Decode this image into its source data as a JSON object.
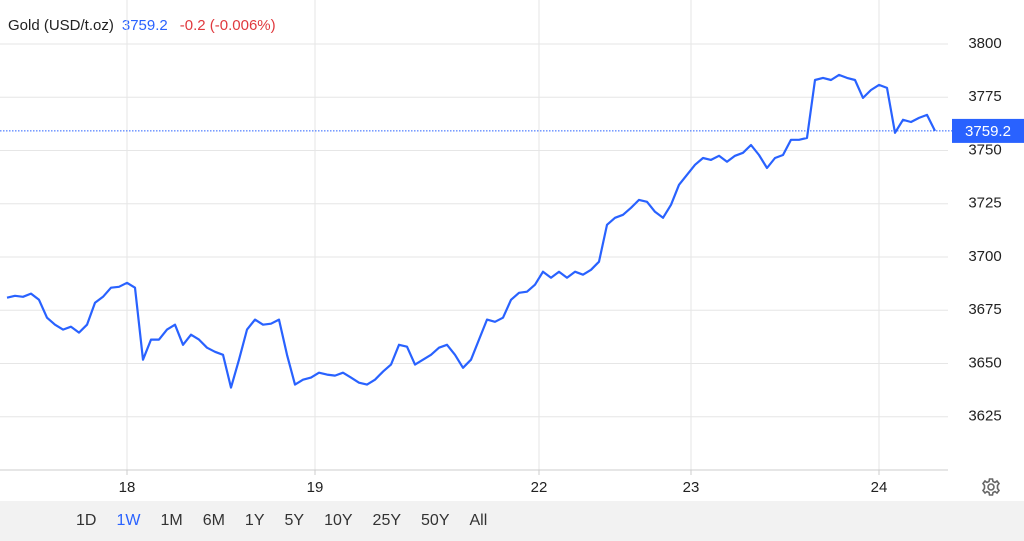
{
  "chart_data": {
    "type": "line",
    "title": "Gold (USD/t.oz)",
    "last_price": 3759.2,
    "change": "-0.2 (-0.006%)",
    "x": [
      0,
      1,
      2,
      3,
      4,
      5,
      6,
      7,
      8,
      9,
      10,
      11,
      12,
      13,
      14,
      15,
      16,
      17,
      18,
      19,
      20,
      21,
      22,
      23,
      24,
      25,
      26,
      27,
      28,
      29,
      30,
      31,
      32,
      33,
      34,
      35,
      36,
      37,
      38,
      39,
      40,
      41,
      42,
      43,
      44,
      45,
      46,
      47,
      48,
      49,
      50,
      51,
      52,
      53,
      54,
      55,
      56,
      57,
      58,
      59,
      60,
      61,
      62,
      63,
      64,
      65,
      66,
      67,
      68,
      69,
      70,
      71,
      72,
      73,
      74,
      75,
      76,
      77,
      78,
      79,
      80,
      81,
      82,
      83,
      84,
      85,
      86,
      87,
      88,
      89,
      90,
      91,
      92,
      93,
      94,
      95,
      96,
      97,
      98,
      99,
      100,
      101,
      102,
      103,
      104,
      105,
      106,
      107,
      108,
      109,
      110,
      111,
      112,
      113,
      114,
      115,
      116
    ],
    "series": [
      {
        "name": "Gold",
        "color": "#2962ff",
        "values": [
          3680.9,
          3681.8,
          3681.3,
          3682.8,
          3679.9,
          3671.5,
          3668.2,
          3665.9,
          3667.3,
          3664.5,
          3668.2,
          3678.5,
          3681.3,
          3685.6,
          3686.0,
          3687.9,
          3685.6,
          3651.8,
          3661.2,
          3661.2,
          3665.9,
          3668.2,
          3658.8,
          3663.5,
          3661.2,
          3657.4,
          3655.5,
          3654.1,
          3638.7,
          3651.8,
          3665.9,
          3670.6,
          3668.2,
          3668.7,
          3670.6,
          3654.1,
          3640.1,
          3642.4,
          3643.4,
          3645.7,
          3644.8,
          3644.3,
          3645.7,
          3643.4,
          3641.0,
          3640.1,
          3642.4,
          3646.2,
          3649.5,
          3658.8,
          3657.9,
          3649.5,
          3651.8,
          3654.1,
          3657.4,
          3658.8,
          3654.1,
          3648.0,
          3651.8,
          3661.2,
          3670.6,
          3669.6,
          3671.5,
          3679.9,
          3683.2,
          3683.7,
          3687.0,
          3693.1,
          3690.3,
          3693.1,
          3690.3,
          3693.1,
          3691.7,
          3694.0,
          3697.8,
          3715.1,
          3718.4,
          3719.8,
          3723.1,
          3726.8,
          3725.9,
          3721.2,
          3718.4,
          3724.5,
          3733.9,
          3738.6,
          3743.3,
          3746.5,
          3745.6,
          3747.5,
          3744.7,
          3747.5,
          3748.9,
          3752.6,
          3747.9,
          3741.8,
          3746.5,
          3747.9,
          3755.0,
          3755.0,
          3755.9,
          3783.1,
          3784.1,
          3783.1,
          3785.5,
          3784.1,
          3783.1,
          3774.7,
          3778.4,
          3780.8,
          3779.4,
          3758.3,
          3764.4,
          3763.4,
          3765.3,
          3766.7,
          3759.2
        ]
      }
    ],
    "xlim": [
      0,
      116
    ],
    "xticks": [
      {
        "value": 15,
        "label": "18"
      },
      {
        "value": 38.5,
        "label": "19"
      },
      {
        "value": 66.5,
        "label": "22"
      },
      {
        "value": 85.5,
        "label": "23"
      },
      {
        "value": 109,
        "label": "24"
      }
    ],
    "ylim": [
      3600,
      3800
    ],
    "yticks": [
      3625,
      3650,
      3675,
      3700,
      3725,
      3750,
      3775,
      3800
    ],
    "grid": true,
    "ranges": [
      "1D",
      "1W",
      "1M",
      "6M",
      "1Y",
      "5Y",
      "10Y",
      "25Y",
      "50Y",
      "All"
    ],
    "selected_range": "1W"
  }
}
